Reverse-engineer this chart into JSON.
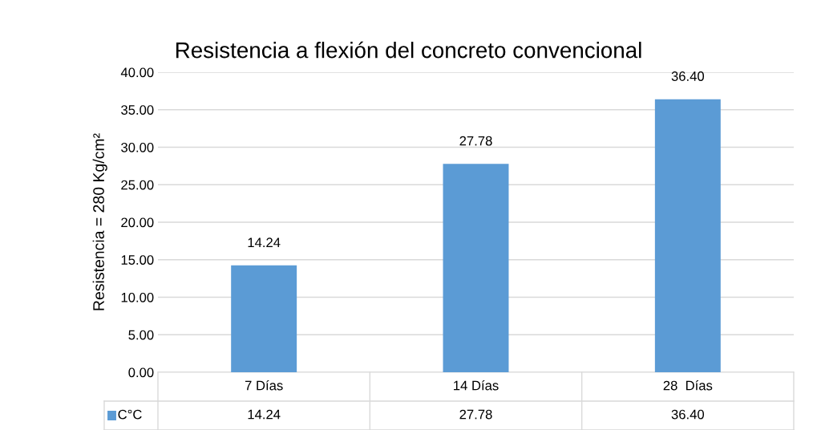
{
  "chart_data": {
    "type": "bar",
    "title": "Resistencia a flexión del concreto convencional",
    "ylabel": "Resistencia = 280 Kg/cm²",
    "categories": [
      "7 Días",
      "14 Días",
      "28  Días"
    ],
    "series": [
      {
        "name": "C°C",
        "color": "#5b9bd5",
        "values": [
          14.24,
          27.78,
          36.4
        ]
      }
    ],
    "value_labels": [
      "14.24",
      "27.78",
      "36.40"
    ],
    "ylim": [
      0,
      40
    ],
    "yticks": [
      {
        "value": 0,
        "label": "0.00"
      },
      {
        "value": 5,
        "label": "5.00"
      },
      {
        "value": 10,
        "label": "10.00"
      },
      {
        "value": 15,
        "label": "15.00"
      },
      {
        "value": 20,
        "label": "20.00"
      },
      {
        "value": 25,
        "label": "25.00"
      },
      {
        "value": 30,
        "label": "30.00"
      },
      {
        "value": 35,
        "label": "35.00"
      },
      {
        "value": 40,
        "label": "40.00"
      }
    ],
    "grid": "y",
    "legend": "bottom"
  }
}
